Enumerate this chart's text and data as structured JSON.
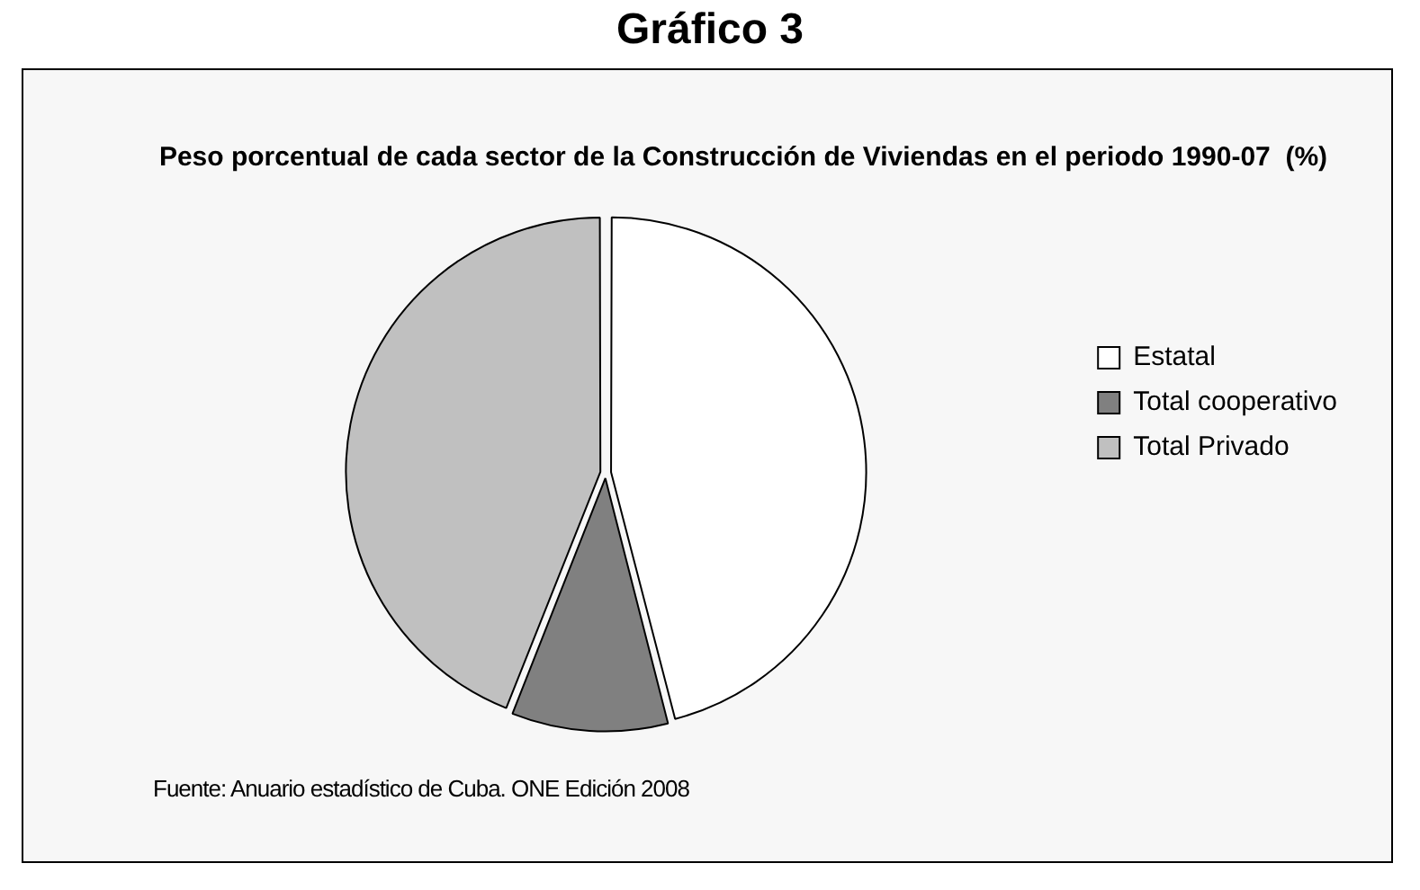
{
  "chart_data": {
    "type": "pie",
    "title": "Gráfico 3",
    "subtitle": "Peso porcentual de cada sector de la Construcción de Viviendas en el periodo 1990-07  (%)",
    "categories": [
      "Estatal",
      "Total cooperativo",
      "Total Privado"
    ],
    "values": [
      46,
      10,
      44
    ],
    "colors": [
      "#ffffff",
      "#808080",
      "#c0c0c0"
    ],
    "legend": "right",
    "annotations": [
      "Fuente: Anuario estadístico de Cuba. ONE Edición 2008"
    ]
  }
}
